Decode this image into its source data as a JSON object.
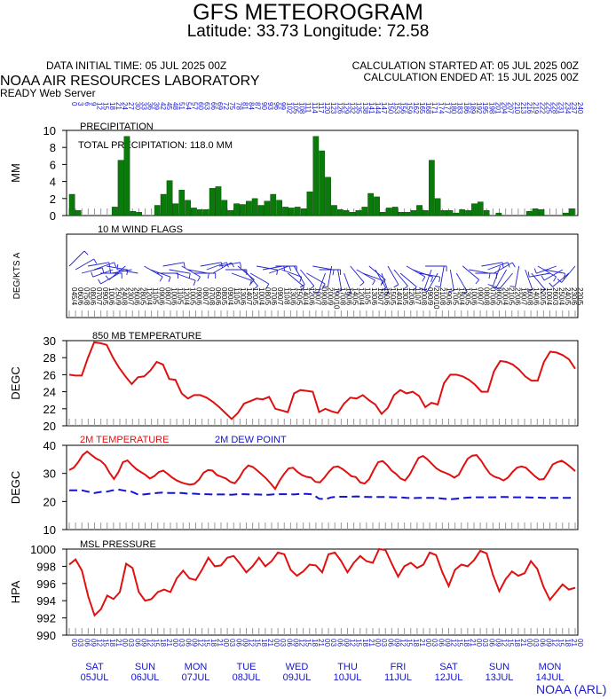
{
  "header": {
    "title": "GFS METEOROGRAM",
    "location": "Latitude: 33.73 Longitude:  72.58",
    "initial_time": "DATA INITIAL TIME: 05 JUL 2025 00Z",
    "calc_started": "CALCULATION STARTED AT: 05 JUL 2025 00Z",
    "calc_ended": "CALCULATION ENDED AT: 15 JUL 2025 00Z",
    "lab": "NOAA AIR RESOURCES LABORATORY",
    "server": "READY Web Server",
    "credit": "NOAA (ARL)"
  },
  "colors": {
    "bars": "#0a7a0a",
    "temperature": "#e01010",
    "dewpoint": "#1414d0",
    "wind": "#2020d0",
    "axis_text": "#1414c8"
  },
  "chart_data": [
    {
      "type": "bar",
      "title": "PRECIPITATION",
      "annotation": "TOTAL PRECIPITATION: 118.0 MM",
      "ylabel": "MM",
      "ylim": [
        0,
        10
      ],
      "yticks": [
        "0",
        "2",
        "4",
        "6",
        "8",
        "10"
      ],
      "x": "forecast hour (3-hourly, 0-240)",
      "values": [
        2.5,
        0.6,
        0,
        0,
        0,
        0,
        0,
        1.0,
        6.5,
        9.3,
        0.5,
        0.4,
        0,
        0,
        1.2,
        2.5,
        4.1,
        1.4,
        3.0,
        1.8,
        0.9,
        0.7,
        0.7,
        3.2,
        3.4,
        1.8,
        0.6,
        1.4,
        1.3,
        1.7,
        2.0,
        1.2,
        1.7,
        2.5,
        1.8,
        1.0,
        0.9,
        1.0,
        0.8,
        2.8,
        9.3,
        7.6,
        4.5,
        1.2,
        0.7,
        0.6,
        0.4,
        0.6,
        1.0,
        2.6,
        2.2,
        0.4,
        0.9,
        1.0,
        0.4,
        0.4,
        0.6,
        1.2,
        0.6,
        6.5,
        2.0,
        0.6,
        0.6,
        0.3,
        0.7,
        0.6,
        1.4,
        1.6,
        0.6,
        0,
        0.3,
        0,
        0,
        0,
        0,
        0.5,
        0.8,
        0.7,
        0,
        0,
        0,
        0.3,
        0.8
      ]
    },
    {
      "type": "wind-barbs",
      "title": "10 M  WIND FLAGS",
      "ylabel": "DEG/KTS  A",
      "direction_deg": [
        45,
        60,
        75,
        80,
        70,
        90,
        100,
        250,
        240,
        230,
        260,
        280,
        120,
        110,
        90,
        80,
        100,
        110,
        120,
        100,
        90,
        80,
        70,
        60,
        80,
        90,
        110,
        130,
        140,
        120,
        100,
        80,
        70,
        90,
        110,
        130,
        150,
        140,
        120,
        100,
        90,
        200,
        190,
        170,
        160,
        140,
        120,
        110,
        130,
        150,
        160,
        150,
        140,
        130,
        120,
        110,
        100,
        90,
        200,
        210,
        190,
        170,
        150,
        130,
        100,
        90,
        80,
        70,
        60,
        200,
        210,
        220,
        190,
        160,
        140,
        120,
        100,
        260,
        250,
        240,
        230,
        220
      ],
      "speed_kts": [
        4,
        6,
        8,
        6,
        7,
        5,
        6,
        9,
        8,
        7,
        6,
        5,
        4,
        5,
        6,
        7,
        6,
        5,
        4,
        5,
        6,
        7,
        8,
        6,
        5,
        4,
        5,
        6,
        7,
        5,
        4,
        5,
        6,
        7,
        8,
        6,
        5,
        4,
        6,
        7,
        8,
        9,
        10,
        8,
        6,
        5,
        4,
        5,
        6,
        7,
        6,
        5,
        4,
        5,
        6,
        7,
        8,
        9,
        10,
        8,
        6,
        5,
        4,
        5,
        6,
        7,
        8,
        6,
        5,
        4,
        5,
        6,
        7,
        8,
        6,
        5,
        4,
        3,
        4,
        5,
        6,
        5
      ]
    },
    {
      "type": "line",
      "title": "850 MB  TEMPERATURE",
      "ylabel": "DEGC",
      "ylim": [
        20,
        30
      ],
      "yticks": [
        "20",
        "22",
        "24",
        "26",
        "28",
        "30"
      ],
      "series": [
        {
          "values": [
            26.0,
            25.9,
            25.9,
            28.0,
            29.8,
            29.7,
            29.5,
            28.0,
            26.8,
            25.8,
            24.9,
            25.7,
            25.8,
            26.5,
            27.5,
            27.2,
            25.5,
            25.4,
            23.8,
            23.2,
            23.6,
            23.6,
            23.3,
            22.8,
            22.2,
            21.5,
            20.8,
            21.5,
            22.6,
            22.9,
            23.2,
            23.1,
            23.4,
            22.0,
            21.8,
            21.6,
            23.8,
            24.2,
            24.1,
            24.0,
            21.6,
            22.0,
            21.7,
            21.5,
            22.6,
            23.3,
            23.2,
            23.6,
            23.0,
            22.5,
            21.4,
            22.1,
            23.6,
            24.2,
            23.8,
            24.0,
            23.5,
            22.2,
            22.7,
            22.5,
            25.0,
            26.0,
            26.0,
            25.8,
            25.4,
            24.8,
            24.0,
            24.0,
            26.4,
            27.6,
            27.5,
            27.2,
            26.6,
            25.8,
            25.3,
            25.3,
            27.5,
            28.7,
            28.6,
            28.3,
            27.8,
            26.7
          ]
        }
      ]
    },
    {
      "type": "line",
      "ylabel": "DEGC",
      "ylim": [
        10,
        40
      ],
      "yticks": [
        "10",
        "20",
        "30",
        "40"
      ],
      "series": [
        {
          "name": "2M TEMPERATURE",
          "values": [
            31.2,
            32.0,
            34.0,
            36.5,
            37.8,
            36.5,
            35.3,
            34.5,
            33.0,
            30.2,
            28.0,
            30.5,
            34.0,
            34.6,
            33.0,
            31.5,
            30.5,
            29.5,
            28.2,
            29.0,
            30.5,
            31.0,
            29.8,
            28.5,
            27.5,
            26.8,
            26.3,
            26.0,
            26.3,
            27.8,
            30.2,
            31.2,
            31.0,
            29.4,
            28.8,
            28.2,
            27.0,
            26.5,
            28.5,
            31.2,
            32.8,
            32.3,
            31.0,
            29.6,
            28.2,
            26.4,
            24.5,
            27.5,
            29.8,
            31.8,
            32.0,
            30.5,
            29.4,
            28.8,
            28.5,
            27.0,
            26.8,
            28.5,
            30.6,
            32.2,
            32.5,
            31.6,
            30.4,
            29.0,
            28.7,
            26.8,
            26.4,
            28.0,
            31.2,
            34.0,
            34.4,
            33.0,
            31.0,
            29.8,
            28.2,
            27.5,
            29.5,
            32.5,
            35.5,
            36.2,
            35.0,
            33.4,
            31.8,
            30.8,
            30.2,
            29.5,
            28.5,
            29.5,
            32.5,
            35.2,
            36.3,
            36.5,
            34.5,
            32.0,
            29.8,
            28.8,
            28.3,
            27.5,
            28.5,
            30.5,
            32.0,
            32.5,
            32.0,
            30.5,
            29.0,
            27.8,
            28.0,
            30.5,
            33.2,
            34.0,
            34.5,
            33.5,
            32.2,
            30.8
          ]
        },
        {
          "name": "2M  DEW POINT",
          "values": [
            24.0,
            24.0,
            24.0,
            23.5,
            23.0,
            23.4,
            23.5,
            24.0,
            24.2,
            23.8,
            23.5,
            22.5,
            22.5,
            22.8,
            23.0,
            23.2,
            23.0,
            23.0,
            23.0,
            22.8,
            22.8,
            22.6,
            22.6,
            22.5,
            22.5,
            22.5,
            22.4,
            22.6,
            22.6,
            22.5,
            22.5,
            22.4,
            22.4,
            22.6,
            22.6,
            22.6,
            22.5,
            22.7,
            22.7,
            22.5,
            21.0,
            20.8,
            21.5,
            21.7,
            21.7,
            21.7,
            21.8,
            21.7,
            21.6,
            21.6,
            21.6,
            21.6,
            21.5,
            21.5,
            21.3,
            21.2,
            21.3,
            21.3,
            21.3,
            21.2,
            21.0,
            20.8,
            21.0,
            21.2,
            21.4,
            21.5,
            21.5,
            21.5,
            21.5,
            21.6,
            21.6,
            21.5,
            21.5,
            21.5,
            21.4,
            21.4,
            21.3,
            21.3,
            21.3,
            21.3,
            21.3,
            21.4
          ]
        }
      ]
    },
    {
      "type": "line",
      "title": "MSL PRESSURE",
      "ylabel": "HPA",
      "ylim": [
        990,
        1000
      ],
      "yticks": [
        "990",
        "992",
        "994",
        "996",
        "998",
        "1000"
      ],
      "series": [
        {
          "values": [
            998.2,
            998.8,
            997.5,
            994.5,
            992.3,
            993.0,
            994.6,
            994.2,
            995.0,
            998.3,
            997.8,
            995.0,
            994.0,
            994.2,
            995.0,
            995.3,
            995.0,
            996.6,
            997.5,
            996.6,
            996.4,
            997.6,
            999.0,
            998.0,
            998.1,
            999.0,
            999.2,
            998.3,
            997.3,
            998.0,
            999.0,
            998.0,
            998.6,
            999.6,
            999.4,
            997.6,
            996.9,
            997.4,
            998.2,
            998.1,
            997.3,
            999.4,
            999.6,
            998.6,
            997.3,
            998.4,
            999.2,
            998.6,
            998.4,
            1000.0,
            999.9,
            998.3,
            996.8,
            998.0,
            998.4,
            997.8,
            998.2,
            999.6,
            999.3,
            997.3,
            995.7,
            997.6,
            998.2,
            998.0,
            998.7,
            999.8,
            999.5,
            997.0,
            995.1,
            996.5,
            997.4,
            996.9,
            997.2,
            998.6,
            997.7,
            995.6,
            994.1,
            995.0,
            995.9,
            995.3,
            995.5
          ]
        }
      ]
    }
  ],
  "x_axis": {
    "hour_labels": [
      "00",
      "03",
      "06",
      "09",
      "12",
      "15",
      "18",
      "21"
    ],
    "days": [
      {
        "name": "SAT",
        "date": "05JUL"
      },
      {
        "name": "SUN",
        "date": "06JUL"
      },
      {
        "name": "MON",
        "date": "07JUL"
      },
      {
        "name": "TUE",
        "date": "08JUL"
      },
      {
        "name": "WED",
        "date": "09JUL"
      },
      {
        "name": "THU",
        "date": "10JUL"
      },
      {
        "name": "FRI",
        "date": "11JUL"
      },
      {
        "name": "SAT",
        "date": "12JUL"
      },
      {
        "name": "SUN",
        "date": "13JUL"
      },
      {
        "name": "MON",
        "date": "14JUL"
      }
    ]
  }
}
